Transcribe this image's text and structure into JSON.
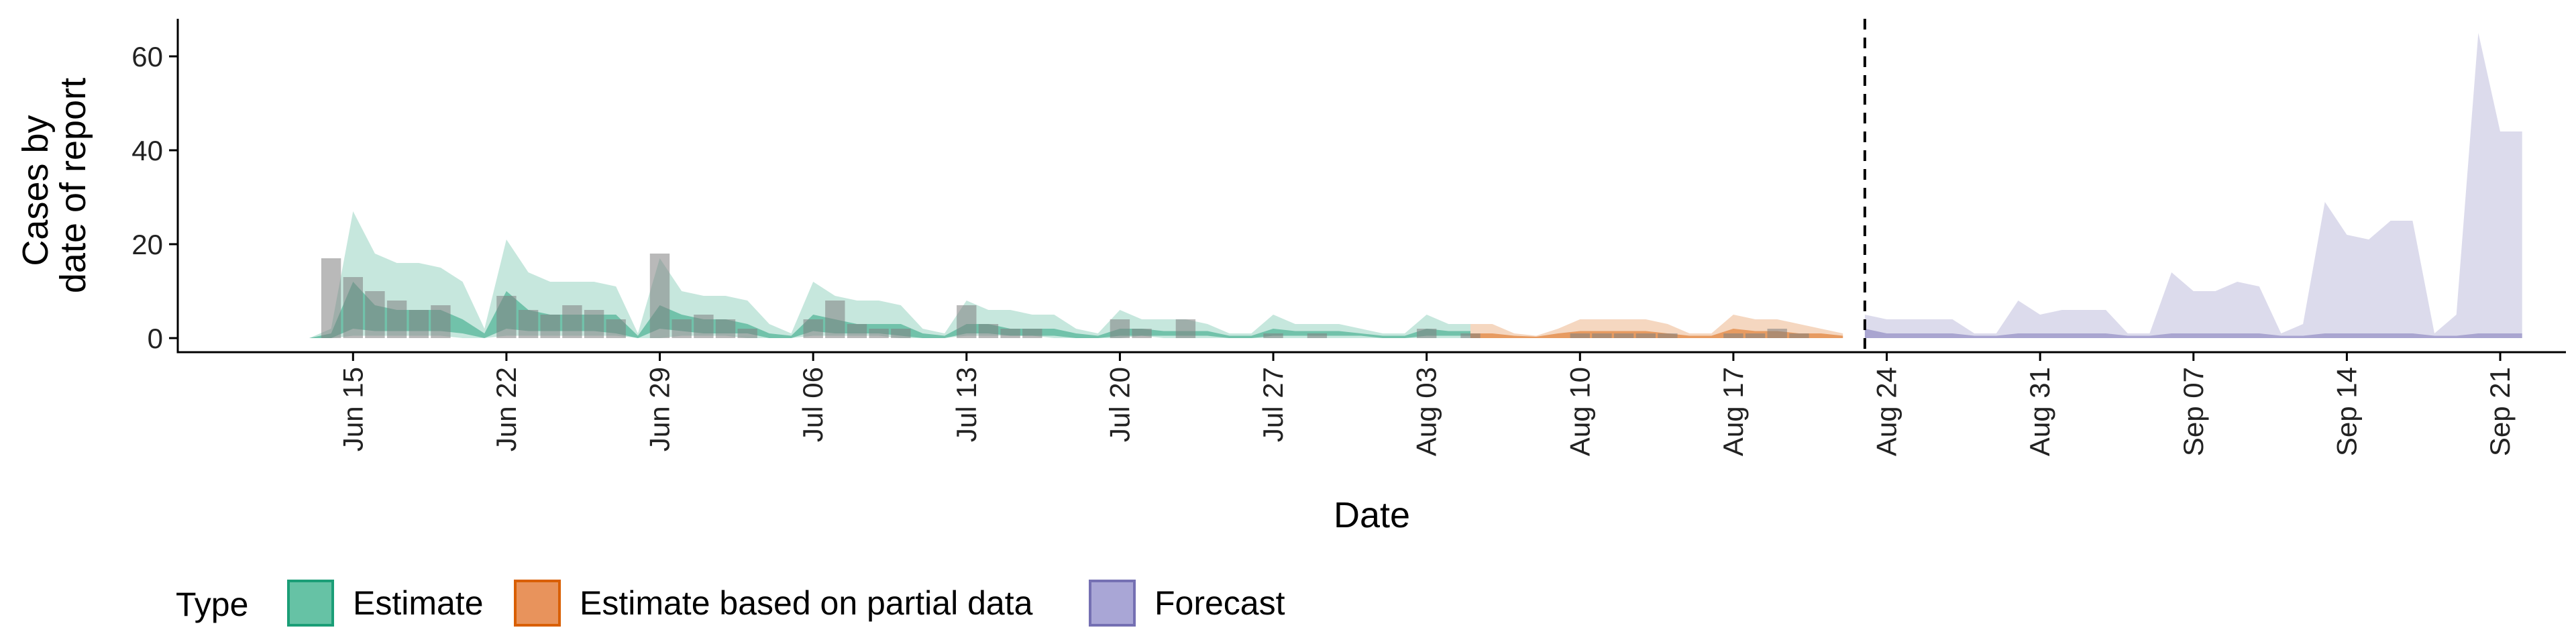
{
  "chart_data": {
    "type": "area",
    "title": "",
    "xlabel": "Date",
    "ylabel_lines": [
      "Cases by",
      "date of report"
    ],
    "ylim": [
      -3,
      68
    ],
    "y_ticks": [
      0,
      20,
      40,
      60
    ],
    "x_range": [
      "2020-06-07",
      "2020-09-24"
    ],
    "x_ticks": [
      {
        "date": "2020-06-15",
        "label": "Jun 15"
      },
      {
        "date": "2020-06-22",
        "label": "Jun 22"
      },
      {
        "date": "2020-06-29",
        "label": "Jun 29"
      },
      {
        "date": "2020-07-06",
        "label": "Jul 06"
      },
      {
        "date": "2020-07-13",
        "label": "Jul 13"
      },
      {
        "date": "2020-07-20",
        "label": "Jul 20"
      },
      {
        "date": "2020-07-27",
        "label": "Jul 27"
      },
      {
        "date": "2020-08-03",
        "label": "Aug 03"
      },
      {
        "date": "2020-08-10",
        "label": "Aug 10"
      },
      {
        "date": "2020-08-17",
        "label": "Aug 17"
      },
      {
        "date": "2020-08-24",
        "label": "Aug 24"
      },
      {
        "date": "2020-08-31",
        "label": "Aug 31"
      },
      {
        "date": "2020-09-07",
        "label": "Sep 07"
      },
      {
        "date": "2020-09-14",
        "label": "Sep 14"
      },
      {
        "date": "2020-09-21",
        "label": "Sep 21"
      }
    ],
    "forecast_line_date": "2020-08-23",
    "grid": false,
    "legend_position": "bottom",
    "legend": {
      "title": "Type",
      "items": [
        {
          "label": "Estimate",
          "fill": "#66c2a5",
          "border": "#1b9e77"
        },
        {
          "label": "Estimate based on partial data",
          "fill": "#e8935c",
          "border": "#d95f02"
        },
        {
          "label": "Forecast",
          "fill": "#a9a6d6",
          "border": "#7570b3"
        }
      ]
    },
    "series": [
      {
        "name": "Estimate",
        "color": "#1b9e77",
        "x": [
          "2020-06-13",
          "2020-06-14",
          "2020-06-15",
          "2020-06-16",
          "2020-06-17",
          "2020-06-18",
          "2020-06-19",
          "2020-06-20",
          "2020-06-21",
          "2020-06-22",
          "2020-06-23",
          "2020-06-24",
          "2020-06-25",
          "2020-06-26",
          "2020-06-27",
          "2020-06-28",
          "2020-06-29",
          "2020-06-30",
          "2020-07-01",
          "2020-07-02",
          "2020-07-03",
          "2020-07-04",
          "2020-07-05",
          "2020-07-06",
          "2020-07-07",
          "2020-07-08",
          "2020-07-09",
          "2020-07-10",
          "2020-07-11",
          "2020-07-12",
          "2020-07-13",
          "2020-07-14",
          "2020-07-15",
          "2020-07-16",
          "2020-07-17",
          "2020-07-18",
          "2020-07-19",
          "2020-07-20",
          "2020-07-21",
          "2020-07-22",
          "2020-07-23",
          "2020-07-24",
          "2020-07-25",
          "2020-07-26",
          "2020-07-27",
          "2020-07-28",
          "2020-07-29",
          "2020-07-30",
          "2020-07-31",
          "2020-08-01",
          "2020-08-02",
          "2020-08-03",
          "2020-08-04",
          "2020-08-05"
        ],
        "lower90": [
          0,
          0,
          0.5,
          0.5,
          0.5,
          0.5,
          0.5,
          0,
          0,
          0.5,
          0.5,
          0.5,
          0.5,
          0.5,
          0.5,
          0,
          0,
          0.5,
          0.5,
          0.5,
          0,
          0,
          0,
          0.5,
          0.5,
          0.5,
          0.5,
          0,
          0,
          0,
          0.5,
          0.5,
          0.5,
          0.5,
          0,
          0,
          0,
          0,
          0.5,
          0,
          0,
          0,
          0,
          0,
          0,
          0,
          0,
          0,
          0,
          0,
          0,
          0,
          0,
          0
        ],
        "upper90": [
          0,
          2,
          27,
          18,
          16,
          16,
          15,
          12,
          2,
          21,
          14,
          12,
          12,
          12,
          11,
          1,
          17,
          10,
          9,
          9,
          8,
          3,
          1,
          12,
          9,
          8,
          8,
          7,
          2,
          1,
          8,
          6,
          6,
          5,
          5,
          2,
          1,
          6,
          4,
          4,
          4,
          3,
          1,
          1,
          5,
          3,
          3,
          3,
          2,
          1,
          1,
          5,
          3,
          3
        ],
        "lower50": [
          0,
          0,
          2,
          1.5,
          1.5,
          1.5,
          1.5,
          1,
          0,
          2,
          1.5,
          1.5,
          1.5,
          1.5,
          1,
          0,
          2,
          1.5,
          1,
          1,
          1,
          0,
          0,
          1.5,
          1,
          1,
          1,
          0.5,
          0,
          0,
          1,
          1,
          0.5,
          0.5,
          0.5,
          0,
          0,
          0.5,
          0.5,
          0.5,
          0.5,
          0.5,
          0,
          0,
          0.5,
          0.5,
          0.5,
          0.5,
          0.5,
          0,
          0,
          0.5,
          0.5,
          0.5
        ],
        "upper50": [
          0,
          1,
          12,
          7,
          6,
          6,
          6,
          4,
          1,
          10,
          6,
          5,
          5,
          5,
          5,
          0.5,
          7,
          5,
          4,
          4,
          3,
          1,
          0.5,
          5,
          4,
          3,
          3,
          3,
          1,
          0.5,
          3,
          3,
          2,
          2,
          2,
          1,
          0.5,
          2,
          2,
          1.5,
          1.5,
          1.5,
          0.5,
          0.5,
          2,
          1.5,
          1.5,
          1.5,
          1,
          0.5,
          0.5,
          2,
          1.5,
          1.5
        ]
      },
      {
        "name": "Estimate based on partial data",
        "color": "#d95f02",
        "x": [
          "2020-08-05",
          "2020-08-06",
          "2020-08-07",
          "2020-08-08",
          "2020-08-09",
          "2020-08-10",
          "2020-08-11",
          "2020-08-12",
          "2020-08-13",
          "2020-08-14",
          "2020-08-15",
          "2020-08-16",
          "2020-08-17",
          "2020-08-18",
          "2020-08-19",
          "2020-08-20",
          "2020-08-21",
          "2020-08-22"
        ],
        "lower90": [
          0,
          0,
          0,
          0,
          0,
          0,
          0,
          0,
          0,
          0,
          0,
          0,
          0,
          0,
          0,
          0,
          0,
          0
        ],
        "upper90": [
          3,
          3,
          1,
          0.5,
          2,
          4,
          4,
          4,
          4,
          3,
          1,
          1,
          5,
          4,
          4,
          3,
          2,
          1
        ],
        "lower50": [
          0,
          0,
          0,
          0,
          0,
          0,
          0,
          0,
          0,
          0,
          0,
          0,
          0,
          0,
          0,
          0,
          0,
          0
        ],
        "upper50": [
          1,
          1,
          0.5,
          0.3,
          1,
          1.5,
          1.5,
          1.5,
          1.5,
          1,
          0.5,
          0.5,
          2,
          1.5,
          1.5,
          1,
          1,
          0.5
        ]
      },
      {
        "name": "Forecast",
        "color": "#7570b3",
        "x": [
          "2020-08-23",
          "2020-08-24",
          "2020-08-25",
          "2020-08-26",
          "2020-08-27",
          "2020-08-28",
          "2020-08-29",
          "2020-08-30",
          "2020-08-31",
          "2020-09-01",
          "2020-09-02",
          "2020-09-03",
          "2020-09-04",
          "2020-09-05",
          "2020-09-06",
          "2020-09-07",
          "2020-09-08",
          "2020-09-09",
          "2020-09-10",
          "2020-09-11",
          "2020-09-12",
          "2020-09-13",
          "2020-09-14",
          "2020-09-15",
          "2020-09-16",
          "2020-09-17",
          "2020-09-18",
          "2020-09-19",
          "2020-09-20",
          "2020-09-21",
          "2020-09-22"
        ],
        "lower90": [
          0,
          0,
          0,
          0,
          0,
          0,
          0,
          0,
          0,
          0,
          0,
          0,
          0,
          0,
          0,
          0,
          0,
          0,
          0,
          0,
          0,
          0,
          0,
          0,
          0,
          0,
          0,
          0,
          0,
          0,
          0
        ],
        "upper90": [
          5,
          4,
          4,
          4,
          4,
          1,
          1,
          8,
          5,
          6,
          6,
          6,
          1,
          1,
          14,
          10,
          10,
          12,
          11,
          1,
          3,
          29,
          22,
          21,
          25,
          25,
          1,
          5,
          65,
          44,
          44
        ],
        "lower50": [
          0,
          0,
          0,
          0,
          0,
          0,
          0,
          0,
          0,
          0,
          0,
          0,
          0,
          0,
          0,
          0,
          0,
          0,
          0,
          0,
          0,
          0,
          0,
          0,
          0,
          0,
          0,
          0,
          0,
          0,
          0
        ],
        "upper50": [
          2,
          1,
          1,
          1,
          1,
          0.5,
          0.5,
          1,
          1,
          1,
          1,
          1,
          0.5,
          0.5,
          1,
          1,
          1,
          1,
          1,
          0.5,
          0.5,
          1,
          1,
          1,
          1,
          1,
          0.5,
          0.5,
          1,
          1,
          1
        ]
      }
    ],
    "observed_cases": {
      "color": "#7f7f7f",
      "x": [
        "2020-06-14",
        "2020-06-15",
        "2020-06-16",
        "2020-06-17",
        "2020-06-18",
        "2020-06-19",
        "2020-06-22",
        "2020-06-23",
        "2020-06-24",
        "2020-06-25",
        "2020-06-26",
        "2020-06-27",
        "2020-06-29",
        "2020-06-30",
        "2020-07-01",
        "2020-07-02",
        "2020-07-03",
        "2020-07-06",
        "2020-07-07",
        "2020-07-08",
        "2020-07-09",
        "2020-07-10",
        "2020-07-13",
        "2020-07-14",
        "2020-07-15",
        "2020-07-16",
        "2020-07-20",
        "2020-07-21",
        "2020-07-23",
        "2020-07-27",
        "2020-07-29",
        "2020-08-03",
        "2020-08-05",
        "2020-08-10",
        "2020-08-11",
        "2020-08-12",
        "2020-08-13",
        "2020-08-14",
        "2020-08-17",
        "2020-08-18",
        "2020-08-19",
        "2020-08-20"
      ],
      "values": [
        17,
        13,
        10,
        8,
        6,
        7,
        9,
        6,
        5,
        7,
        6,
        4,
        18,
        4,
        5,
        4,
        2,
        4,
        8,
        3,
        2,
        2,
        7,
        3,
        2,
        2,
        4,
        2,
        4,
        1,
        1,
        2,
        1,
        1,
        1,
        1,
        1,
        1,
        1,
        1,
        2,
        1
      ]
    }
  }
}
